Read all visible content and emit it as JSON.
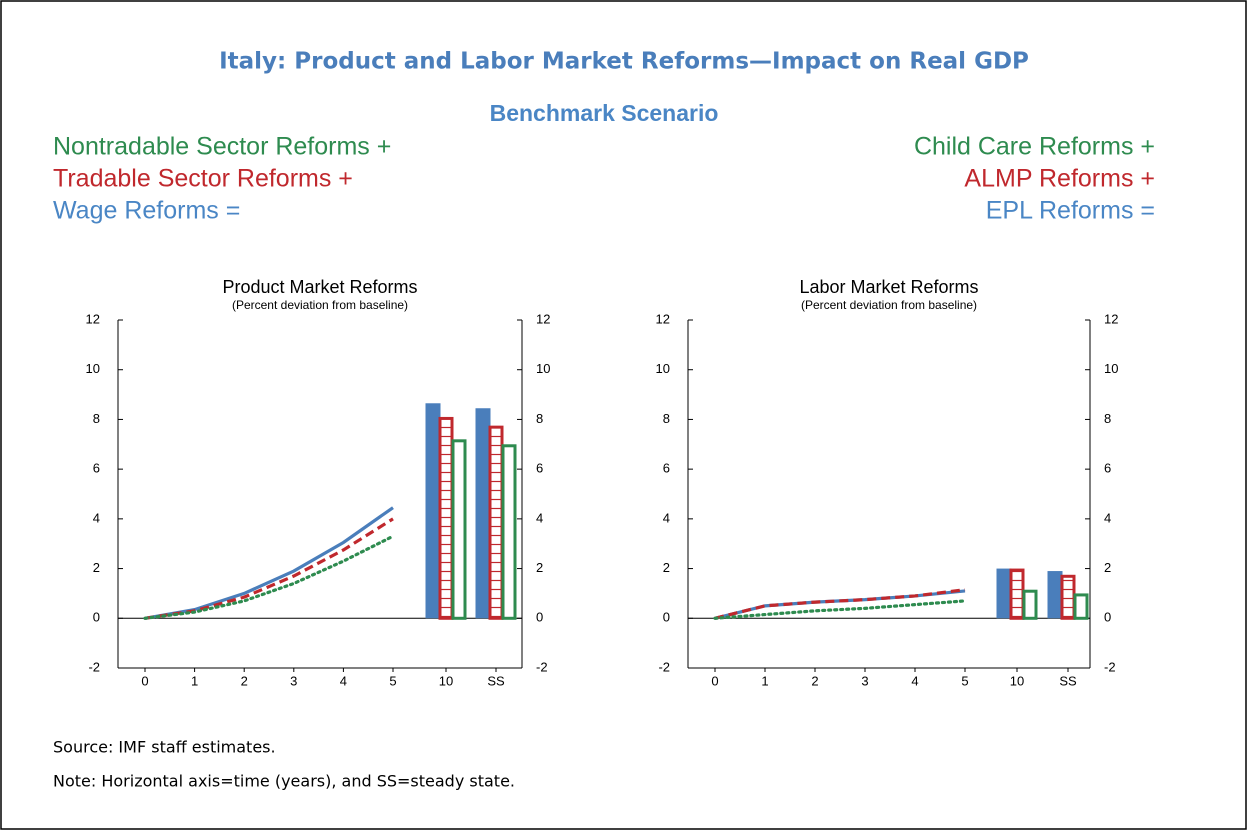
{
  "title": "Italy: Product and Labor Market Reforms—Impact on Real GDP",
  "subtitle": "Benchmark Scenario",
  "legend": {
    "left": [
      {
        "text": "Nontradable Sector Reforms +",
        "color": "#2e8b4f"
      },
      {
        "text": "Tradable Sector Reforms +",
        "color": "#c0282d"
      },
      {
        "text": "Wage Reforms =",
        "color": "#4a86c5"
      }
    ],
    "right": [
      {
        "text": "Child Care Reforms +",
        "color": "#2e8b4f"
      },
      {
        "text": "ALMP Reforms +",
        "color": "#c0282d"
      },
      {
        "text": "EPL Reforms =",
        "color": "#4a86c5"
      }
    ]
  },
  "chart_data": [
    {
      "type": "combo",
      "title": "Product Market Reforms",
      "subtitle": "(Percent deviation from baseline)",
      "line_categories": [
        "0",
        "1",
        "2",
        "3",
        "4",
        "5"
      ],
      "bar_categories": [
        "10",
        "SS"
      ],
      "ylim": [
        -2,
        12
      ],
      "yticks": [
        -2,
        0,
        2,
        4,
        6,
        8,
        10,
        12
      ],
      "y2lim": [
        -2,
        12
      ],
      "y2ticks": [
        -2,
        0,
        2,
        4,
        6,
        8,
        10,
        12
      ],
      "series": [
        {
          "color": "#4a7ebb",
          "line_style": "solid",
          "bar_style": "filled",
          "line_values": [
            0,
            0.35,
            1.0,
            1.9,
            3.05,
            4.45
          ],
          "bar_values": [
            8.65,
            8.45
          ]
        },
        {
          "color": "#c0282d",
          "line_style": "dashed",
          "bar_style": "hatched",
          "line_values": [
            0,
            0.3,
            0.85,
            1.7,
            2.75,
            4.0
          ],
          "bar_values": [
            8.1,
            7.75
          ]
        },
        {
          "color": "#2e8b4f",
          "line_style": "dotted",
          "bar_style": "outline",
          "line_values": [
            0,
            0.25,
            0.7,
            1.4,
            2.3,
            3.3
          ],
          "bar_values": [
            7.2,
            7.0
          ]
        }
      ]
    },
    {
      "type": "combo",
      "title": "Labor Market Reforms",
      "subtitle": "(Percent deviation from baseline)",
      "line_categories": [
        "0",
        "1",
        "2",
        "3",
        "4",
        "5"
      ],
      "bar_categories": [
        "10",
        "SS"
      ],
      "ylim": [
        -2,
        12
      ],
      "yticks": [
        -2,
        0,
        2,
        4,
        6,
        8,
        10,
        12
      ],
      "y2lim": [
        -2,
        12
      ],
      "y2ticks": [
        -2,
        0,
        2,
        4,
        6,
        8,
        10,
        12
      ],
      "series": [
        {
          "color": "#4a7ebb",
          "line_style": "solid",
          "bar_style": "filled",
          "line_values": [
            0,
            0.5,
            0.65,
            0.75,
            0.9,
            1.1
          ],
          "bar_values": [
            2.0,
            1.9
          ]
        },
        {
          "color": "#c0282d",
          "line_style": "dashed",
          "bar_style": "hatched",
          "line_values": [
            0,
            0.5,
            0.65,
            0.75,
            0.9,
            1.15
          ],
          "bar_values": [
            2.0,
            1.75
          ]
        },
        {
          "color": "#2e8b4f",
          "line_style": "dotted",
          "bar_style": "outline",
          "line_values": [
            0,
            0.15,
            0.3,
            0.4,
            0.55,
            0.7
          ],
          "bar_values": [
            1.15,
            1.0
          ]
        }
      ]
    }
  ],
  "source": "Source: IMF staff estimates.",
  "note": "Note: Horizontal axis=time (years), and SS=steady state."
}
